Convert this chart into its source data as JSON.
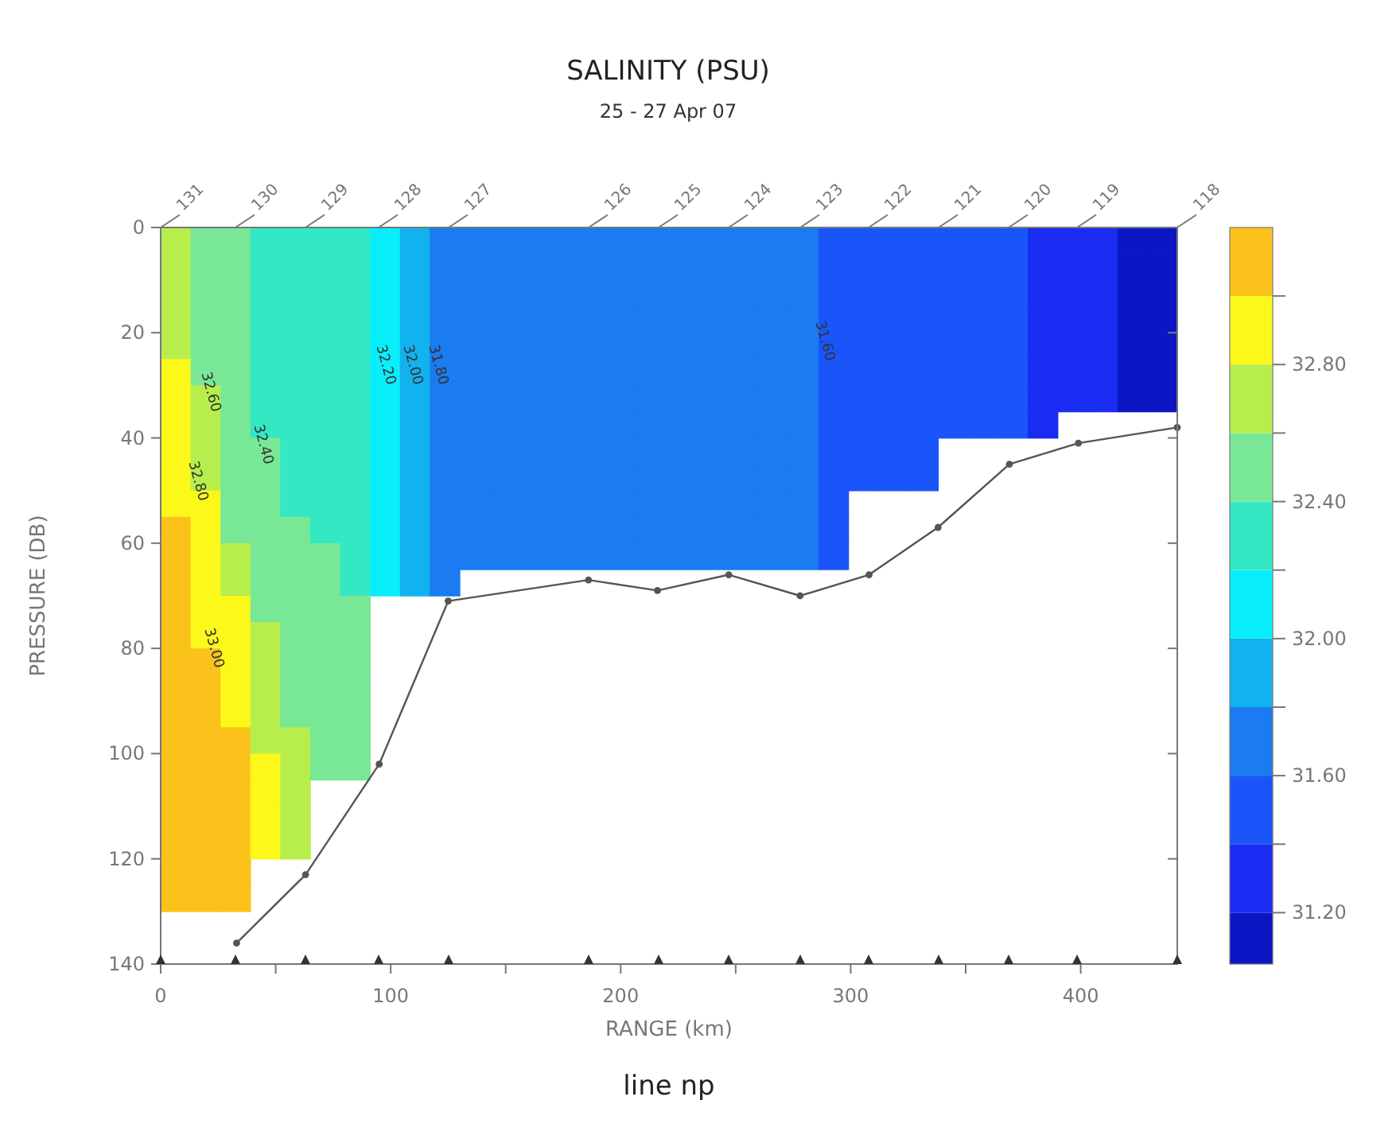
{
  "chart_data": {
    "type": "heatmap",
    "title": "SALINITY (PSU)",
    "subtitle": "25 - 27 Apr 07",
    "xlabel": "RANGE (km)",
    "ylabel": "PRESSURE (DB)",
    "cells": [
      [
        32.7,
        32.5,
        32.5,
        32.3,
        32.3,
        32.3,
        32.3,
        32.1,
        31.9,
        31.7,
        31.7,
        31.7,
        31.7,
        31.7,
        31.7,
        31.7,
        31.7,
        31.7,
        31.7,
        31.7,
        31.7,
        31.7,
        31.5,
        31.5,
        31.5,
        31.5,
        31.5,
        31.5,
        31.5,
        31.3,
        31.3,
        31.3,
        31.1,
        31.1
      ],
      [
        32.7,
        32.5,
        32.5,
        32.3,
        32.3,
        32.3,
        32.3,
        32.1,
        31.9,
        31.7,
        31.7,
        31.7,
        31.7,
        31.7,
        31.7,
        31.7,
        31.7,
        31.7,
        31.7,
        31.7,
        31.7,
        31.7,
        31.5,
        31.5,
        31.5,
        31.5,
        31.5,
        31.5,
        31.5,
        31.3,
        31.3,
        31.3,
        31.1,
        31.1
      ],
      [
        32.7,
        32.5,
        32.5,
        32.3,
        32.3,
        32.3,
        32.3,
        32.1,
        31.9,
        31.7,
        31.7,
        31.7,
        31.7,
        31.7,
        31.7,
        31.7,
        31.7,
        31.7,
        31.7,
        31.7,
        31.7,
        31.7,
        31.5,
        31.5,
        31.5,
        31.5,
        31.5,
        31.5,
        31.5,
        31.3,
        31.3,
        31.3,
        31.1,
        31.1
      ],
      [
        32.7,
        32.5,
        32.5,
        32.3,
        32.3,
        32.3,
        32.3,
        32.1,
        31.9,
        31.7,
        31.7,
        31.7,
        31.7,
        31.7,
        31.7,
        31.7,
        31.7,
        31.7,
        31.7,
        31.7,
        31.7,
        31.7,
        31.5,
        31.5,
        31.5,
        31.5,
        31.5,
        31.5,
        31.5,
        31.3,
        31.3,
        31.3,
        31.1,
        31.1
      ],
      [
        32.7,
        32.5,
        32.5,
        32.3,
        32.3,
        32.3,
        32.3,
        32.1,
        31.9,
        31.7,
        31.7,
        31.7,
        31.7,
        31.7,
        31.7,
        31.7,
        31.7,
        31.7,
        31.7,
        31.7,
        31.7,
        31.7,
        31.5,
        31.5,
        31.5,
        31.5,
        31.5,
        31.5,
        31.5,
        31.3,
        31.3,
        31.3,
        31.1,
        31.1
      ],
      [
        32.9,
        32.5,
        32.5,
        32.3,
        32.3,
        32.3,
        32.3,
        32.1,
        31.9,
        31.7,
        31.7,
        31.7,
        31.7,
        31.7,
        31.7,
        31.7,
        31.7,
        31.7,
        31.7,
        31.7,
        31.7,
        31.7,
        31.5,
        31.5,
        31.5,
        31.5,
        31.5,
        31.5,
        31.5,
        31.3,
        31.3,
        31.3,
        31.1,
        31.1
      ],
      [
        32.9,
        32.7,
        32.5,
        32.3,
        32.3,
        32.3,
        32.3,
        32.1,
        31.9,
        31.7,
        31.7,
        31.7,
        31.7,
        31.7,
        31.7,
        31.7,
        31.7,
        31.7,
        31.7,
        31.7,
        31.7,
        31.7,
        31.5,
        31.5,
        31.5,
        31.5,
        31.5,
        31.5,
        31.5,
        31.3,
        31.3,
        31.3,
        31.1,
        31.1
      ],
      [
        32.9,
        32.7,
        32.5,
        32.3,
        32.3,
        32.3,
        32.3,
        32.1,
        31.9,
        31.7,
        31.7,
        31.7,
        31.7,
        31.7,
        31.7,
        31.7,
        31.7,
        31.7,
        31.7,
        31.7,
        31.7,
        31.7,
        31.5,
        31.5,
        31.5,
        31.5,
        31.5,
        31.5,
        31.5,
        31.3,
        null,
        null,
        null,
        null
      ],
      [
        32.9,
        32.7,
        32.5,
        32.5,
        32.3,
        32.3,
        32.3,
        32.1,
        31.9,
        31.7,
        31.7,
        31.7,
        31.7,
        31.7,
        31.7,
        31.7,
        31.7,
        31.7,
        31.7,
        31.7,
        31.7,
        31.7,
        31.5,
        31.5,
        31.5,
        31.5,
        null,
        null,
        null,
        null,
        null,
        null,
        null,
        null
      ],
      [
        32.9,
        32.7,
        32.5,
        32.5,
        32.3,
        32.3,
        32.3,
        32.1,
        31.9,
        31.7,
        31.7,
        31.7,
        31.7,
        31.7,
        31.7,
        31.7,
        31.7,
        31.7,
        31.7,
        31.7,
        31.7,
        31.7,
        31.5,
        31.5,
        31.5,
        31.5,
        null,
        null,
        null,
        null,
        null,
        null,
        null,
        null
      ],
      [
        32.9,
        32.9,
        32.5,
        32.5,
        32.3,
        32.3,
        32.3,
        32.1,
        31.9,
        31.7,
        31.7,
        31.7,
        31.7,
        31.7,
        31.7,
        31.7,
        31.7,
        31.7,
        31.7,
        31.7,
        31.7,
        31.7,
        31.5,
        null,
        null,
        null,
        null,
        null,
        null,
        null,
        null,
        null,
        null,
        null
      ],
      [
        33.1,
        32.9,
        32.5,
        32.5,
        32.5,
        32.3,
        32.3,
        32.1,
        31.9,
        31.7,
        31.7,
        31.7,
        31.7,
        31.7,
        31.7,
        31.7,
        31.7,
        31.7,
        31.7,
        31.7,
        31.7,
        31.7,
        31.5,
        null,
        null,
        null,
        null,
        null,
        null,
        null,
        null,
        null,
        null,
        null
      ],
      [
        33.1,
        32.9,
        32.7,
        32.5,
        32.5,
        32.5,
        32.3,
        32.1,
        31.9,
        31.7,
        31.7,
        31.7,
        31.7,
        31.7,
        31.7,
        31.7,
        31.7,
        31.7,
        31.7,
        31.7,
        31.7,
        31.7,
        31.5,
        null,
        null,
        null,
        null,
        null,
        null,
        null,
        null,
        null,
        null,
        null
      ],
      [
        33.1,
        32.9,
        32.7,
        32.5,
        32.5,
        32.5,
        32.3,
        32.1,
        31.9,
        31.7,
        null,
        null,
        null,
        null,
        null,
        null,
        null,
        null,
        null,
        null,
        null,
        null,
        null,
        null,
        null,
        null,
        null,
        null,
        null,
        null,
        null,
        null,
        null,
        null
      ],
      [
        33.1,
        32.9,
        32.9,
        32.5,
        32.5,
        32.5,
        32.5,
        null,
        null,
        null,
        null,
        null,
        null,
        null,
        null,
        null,
        null,
        null,
        null,
        null,
        null,
        null,
        null,
        null,
        null,
        null,
        null,
        null,
        null,
        null,
        null,
        null,
        null,
        null
      ],
      [
        33.1,
        32.9,
        32.9,
        32.7,
        32.5,
        32.5,
        32.5,
        null,
        null,
        null,
        null,
        null,
        null,
        null,
        null,
        null,
        null,
        null,
        null,
        null,
        null,
        null,
        null,
        null,
        null,
        null,
        null,
        null,
        null,
        null,
        null,
        null,
        null,
        null
      ],
      [
        33.1,
        33.1,
        32.9,
        32.7,
        32.5,
        32.5,
        32.5,
        null,
        null,
        null,
        null,
        null,
        null,
        null,
        null,
        null,
        null,
        null,
        null,
        null,
        null,
        null,
        null,
        null,
        null,
        null,
        null,
        null,
        null,
        null,
        null,
        null,
        null,
        null
      ],
      [
        33.1,
        33.1,
        32.9,
        32.7,
        32.5,
        32.5,
        32.5,
        null,
        null,
        null,
        null,
        null,
        null,
        null,
        null,
        null,
        null,
        null,
        null,
        null,
        null,
        null,
        null,
        null,
        null,
        null,
        null,
        null,
        null,
        null,
        null,
        null,
        null,
        null
      ],
      [
        33.1,
        33.1,
        32.9,
        32.7,
        32.5,
        32.5,
        32.5,
        null,
        null,
        null,
        null,
        null,
        null,
        null,
        null,
        null,
        null,
        null,
        null,
        null,
        null,
        null,
        null,
        null,
        null,
        null,
        null,
        null,
        null,
        null,
        null,
        null,
        null,
        null
      ],
      [
        33.1,
        33.1,
        33.1,
        32.7,
        32.7,
        32.5,
        32.5,
        null,
        null,
        null,
        null,
        null,
        null,
        null,
        null,
        null,
        null,
        null,
        null,
        null,
        null,
        null,
        null,
        null,
        null,
        null,
        null,
        null,
        null,
        null,
        null,
        null,
        null,
        null
      ],
      [
        33.1,
        33.1,
        33.1,
        32.9,
        32.7,
        32.5,
        32.5,
        null,
        null,
        null,
        null,
        null,
        null,
        null,
        null,
        null,
        null,
        null,
        null,
        null,
        null,
        null,
        null,
        null,
        null,
        null,
        null,
        null,
        null,
        null,
        null,
        null,
        null,
        null
      ],
      [
        33.1,
        33.1,
        33.1,
        32.9,
        32.7,
        null,
        null,
        null,
        null,
        null,
        null,
        null,
        null,
        null,
        null,
        null,
        null,
        null,
        null,
        null,
        null,
        null,
        null,
        null,
        null,
        null,
        null,
        null,
        null,
        null,
        null,
        null,
        null,
        null
      ],
      [
        33.1,
        33.1,
        33.1,
        32.9,
        32.7,
        null,
        null,
        null,
        null,
        null,
        null,
        null,
        null,
        null,
        null,
        null,
        null,
        null,
        null,
        null,
        null,
        null,
        null,
        null,
        null,
        null,
        null,
        null,
        null,
        null,
        null,
        null,
        null,
        null
      ],
      [
        33.1,
        33.1,
        33.1,
        32.9,
        32.7,
        null,
        null,
        null,
        null,
        null,
        null,
        null,
        null,
        null,
        null,
        null,
        null,
        null,
        null,
        null,
        null,
        null,
        null,
        null,
        null,
        null,
        null,
        null,
        null,
        null,
        null,
        null,
        null,
        null
      ],
      [
        33.1,
        33.1,
        33.1,
        null,
        null,
        null,
        null,
        null,
        null,
        null,
        null,
        null,
        null,
        null,
        null,
        null,
        null,
        null,
        null,
        null,
        null,
        null,
        null,
        null,
        null,
        null,
        null,
        null,
        null,
        null,
        null,
        null,
        null,
        null
      ],
      [
        33.1,
        33.1,
        33.1,
        null,
        null,
        null,
        null,
        null,
        null,
        null,
        null,
        null,
        null,
        null,
        null,
        null,
        null,
        null,
        null,
        null,
        null,
        null,
        null,
        null,
        null,
        null,
        null,
        null,
        null,
        null,
        null,
        null,
        null,
        null
      ]
    ],
    "y": [
      2.5,
      7.5,
      12.5,
      17.5,
      22.5,
      27.5,
      32.5,
      37.5,
      42.5,
      47.5,
      52.5,
      57.5,
      62.5,
      67.5,
      72.5,
      77.5,
      82.5,
      87.5,
      92.5,
      97.5,
      102.5,
      107.5,
      112.5,
      117.5,
      122.5,
      127.5
    ],
    "colors": [
      "#0c16c4",
      "#1a2cf2",
      "#1a55fa",
      "#1a7cf0",
      "#12b2ee",
      "#08eefa",
      "#34e8c4",
      "#78e896",
      "#b8ee4c",
      "#fcf81a",
      "#fcc21c"
    ],
    "clim": [
      31.05,
      33.2
    ],
    "cticks": [
      {
        "value": 31.2,
        "label": "31.20"
      },
      {
        "value": 31.4,
        "label": null
      },
      {
        "value": 31.6,
        "label": "31.60"
      },
      {
        "value": 31.8,
        "label": null
      },
      {
        "value": 32.0,
        "label": "32.00"
      },
      {
        "value": 32.2,
        "label": null
      },
      {
        "value": 32.4,
        "label": "32.40"
      },
      {
        "value": 32.6,
        "label": null
      },
      {
        "value": 32.8,
        "label": "32.80"
      },
      {
        "value": 33.0,
        "label": null
      }
    ],
    "xlim": [
      0,
      442
    ],
    "ylim": [
      140,
      0
    ],
    "xticks": [
      0,
      {
        "value": 50,
        "label": null
      },
      100,
      {
        "value": 150,
        "label": null
      },
      200,
      {
        "value": 250,
        "label": null
      },
      300,
      {
        "value": 350,
        "label": null
      },
      400
    ],
    "yticks": [
      0,
      20,
      40,
      60,
      80,
      100,
      120,
      140
    ],
    "series": [
      {
        "type": "line",
        "color": "#555555",
        "marker": "circle",
        "x": [
          33,
          63,
          95,
          125,
          186,
          216,
          247,
          278,
          308,
          338,
          369,
          399,
          442
        ],
        "values": [
          136,
          123,
          102,
          71,
          67,
          69,
          66,
          70,
          66,
          57,
          45,
          41,
          38
        ]
      }
    ],
    "annotations": [
      "32.60",
      "32.40",
      "32.80",
      "33.00",
      "32.20",
      "32.00",
      "31.80",
      "31.60",
      "131",
      "130",
      "129",
      "128",
      "127",
      "126",
      "125",
      "124",
      "123",
      "122",
      "121",
      "120",
      "119",
      "118",
      "line np"
    ],
    "grid": false
  }
}
